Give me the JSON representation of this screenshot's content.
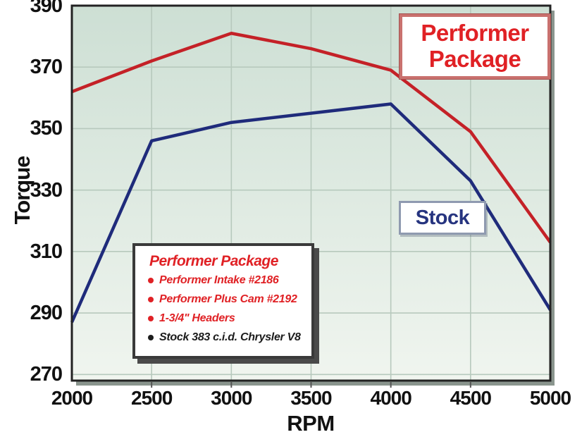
{
  "axes": {
    "y_title": "Torque",
    "x_title": "RPM"
  },
  "chart_data": {
    "type": "line",
    "title": "",
    "xlabel": "RPM",
    "ylabel": "Torque",
    "x": [
      2000,
      2500,
      3000,
      3500,
      4000,
      4500,
      5000
    ],
    "series": [
      {
        "name": "Performer Package",
        "color": "#c42127",
        "values": [
          362,
          372,
          381,
          376,
          369,
          349,
          313
        ]
      },
      {
        "name": "Stock",
        "color": "#1f2b7b",
        "values": [
          287,
          346,
          352,
          355,
          358,
          333,
          291
        ]
      }
    ],
    "xlim": [
      2000,
      5000
    ],
    "ylim": [
      268,
      390
    ],
    "x_ticks": [
      2000,
      2500,
      3000,
      3500,
      4000,
      4500,
      5000
    ],
    "y_ticks": [
      270,
      290,
      310,
      330,
      350,
      370,
      390
    ],
    "grid": true,
    "legend_position": "inside-bottom-left",
    "plot_bg_top": "#cddfd4",
    "plot_bg_bottom": "#f0f5ef",
    "grid_color": "#b7c9bd",
    "border_color": "#222222",
    "shadow_color": "#8a958e"
  },
  "callouts": {
    "performer": {
      "line1": "Performer",
      "line2": "Package"
    },
    "stock": {
      "label": "Stock"
    }
  },
  "legend": {
    "title": "Performer Package",
    "items": [
      {
        "text": "Performer Intake #2186",
        "color": "#e02125"
      },
      {
        "text": "Performer Plus Cam #2192",
        "color": "#e02125"
      },
      {
        "text": "1-3/4\" Headers",
        "color": "#e02125"
      },
      {
        "text": "Stock 383 c.i.d. Chrysler V8",
        "color": "#1c1c1c"
      }
    ]
  }
}
